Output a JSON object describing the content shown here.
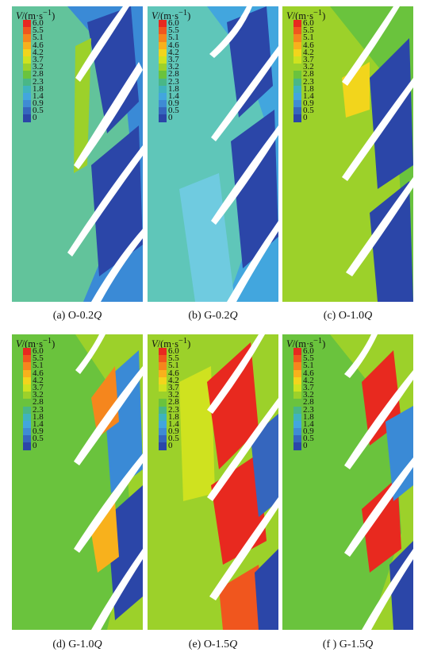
{
  "unit_label": {
    "prefix": "V",
    "suffix": "/(m·s",
    "exp": "−1",
    "close": ")"
  },
  "scale_ticks": [
    "6.0",
    "5.5",
    "5.1",
    "4.6",
    "4.2",
    "3.7",
    "3.2",
    "2.8",
    "2.3",
    "1.8",
    "1.4",
    "0.9",
    "0.5",
    "0"
  ],
  "scale_colors": [
    "#e8291f",
    "#f0561e",
    "#f5861d",
    "#f8b11c",
    "#f2d51c",
    "#cfe21f",
    "#9cd12a",
    "#6ac33d",
    "#49b787",
    "#3fb3bf",
    "#42a6de",
    "#3f8bd4",
    "#3566be",
    "#2b46a8"
  ],
  "panels": [
    {
      "tag": "(a) O-0.2",
      "q": "Q",
      "field": "low_o"
    },
    {
      "tag": "(b) G-0.2",
      "q": "Q",
      "field": "low_g"
    },
    {
      "tag": "(c) O-1.0",
      "q": "Q",
      "field": "mid_o"
    },
    {
      "tag": "(d) G-1.0",
      "q": "Q",
      "field": "mid_g"
    },
    {
      "tag": "(e) O-1.5",
      "q": "Q",
      "field": "high_o"
    },
    {
      "tag": "(f ) G-1.5",
      "q": "Q",
      "field": "high_g"
    }
  ]
}
